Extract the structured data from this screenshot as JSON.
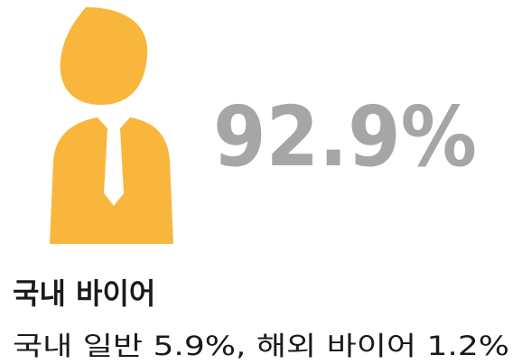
{
  "headline": "92.9%",
  "label": "국내 바이어",
  "detail": "국내 일반 5.9%, 해외 바이어 1.2%"
}
